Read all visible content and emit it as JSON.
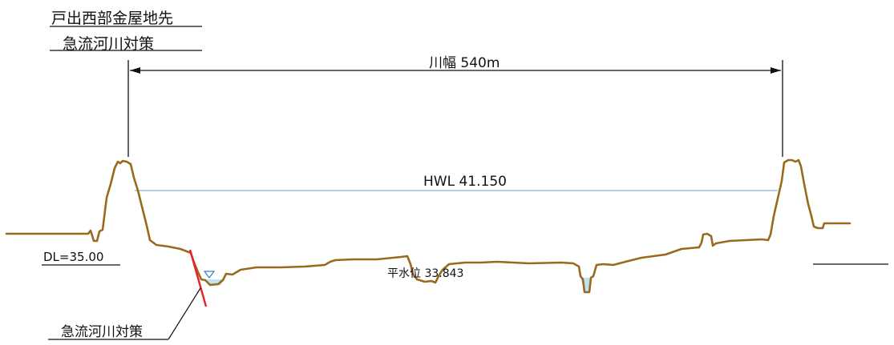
{
  "title": {
    "line1": "戸出西部金屋地先",
    "line2": "急流河川対策"
  },
  "dimension": {
    "river_width_label": "川幅 540m"
  },
  "levels": {
    "hwl_label": "HWL 41.150",
    "datum_label": "DL=35.00",
    "normal_water_label": "平水位 33.843"
  },
  "callout": {
    "label": "急流河川対策"
  },
  "colors": {
    "ground": "#9a6a1c",
    "hwl_line": "#7fb2e0",
    "countermeasure": "#e8202a",
    "water_fill": "#bfe3f2",
    "ink": "#111111"
  }
}
